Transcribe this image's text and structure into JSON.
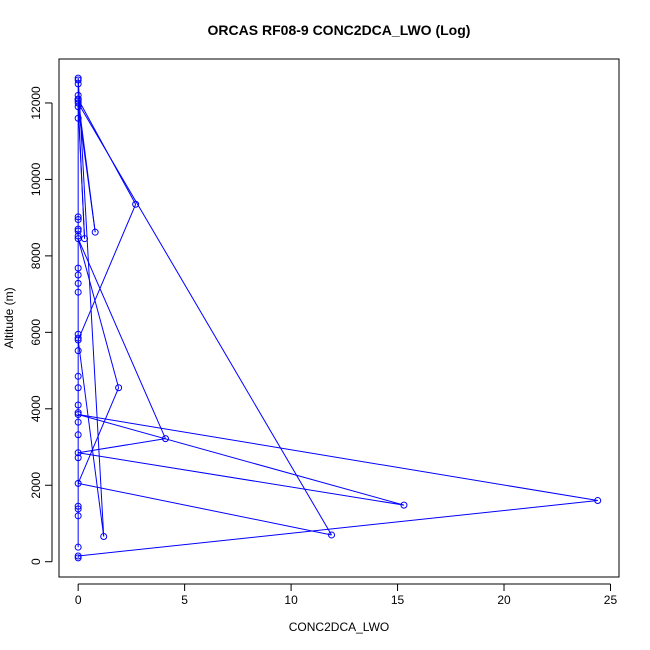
{
  "chart_data": {
    "type": "line",
    "title": "ORCAS RF08-9 CONC2DCA_LWO (Log)",
    "xlabel": "CONC2DCA_LWO",
    "ylabel": "Altitude (m)",
    "xlim": [
      -0.9,
      25.4
    ],
    "ylim": [
      -400,
      13150
    ],
    "x_ticks": [
      0,
      5,
      10,
      15,
      20,
      25
    ],
    "y_ticks": [
      0,
      2000,
      4000,
      6000,
      8000,
      10000,
      12000
    ],
    "x_tick_labels": [
      "0",
      "5",
      "10",
      "15",
      "20",
      "25"
    ],
    "y_tick_labels": [
      "0",
      "2000",
      "4000",
      "6000",
      "8000",
      "10000",
      "12000"
    ],
    "grid": false,
    "legend": "none",
    "colors": {
      "series": "#0000ff",
      "axis": "#000000",
      "background": "#ffffff"
    },
    "series": [
      {
        "marker": "open-circle",
        "x": [
          0.0,
          0.0,
          24.4,
          0.0,
          15.3,
          0.0,
          4.1,
          0.0,
          1.9,
          0.0,
          11.9,
          0.0,
          0.3,
          0.0,
          0.8,
          0.0,
          2.7,
          0.0,
          1.2,
          0.0,
          0.0,
          0.0,
          0.0,
          0.0,
          0.0,
          0.0,
          0.0,
          0.0,
          0.0,
          0.0,
          0.0,
          0.0,
          0.0,
          0.0,
          0.0,
          0.0,
          0.0,
          0.0,
          0.0,
          0.0,
          0.0,
          0.0,
          0.0,
          0.0,
          0.0,
          0.0,
          0.0,
          0.0,
          0.0
        ],
        "y": [
          100,
          150,
          1600,
          3850,
          1480,
          2850,
          3220,
          8450,
          4550,
          2050,
          700,
          12000,
          8450,
          11900,
          8620,
          12100,
          9350,
          5800,
          660,
          12650,
          12600,
          12500,
          12200,
          12100,
          12050,
          11600,
          9020,
          8950,
          8700,
          8650,
          8520,
          7680,
          7500,
          7280,
          7050,
          5950,
          5850,
          5520,
          4850,
          4550,
          4100,
          3900,
          3650,
          3320,
          2720,
          1450,
          1380,
          1200,
          380
        ]
      }
    ]
  }
}
